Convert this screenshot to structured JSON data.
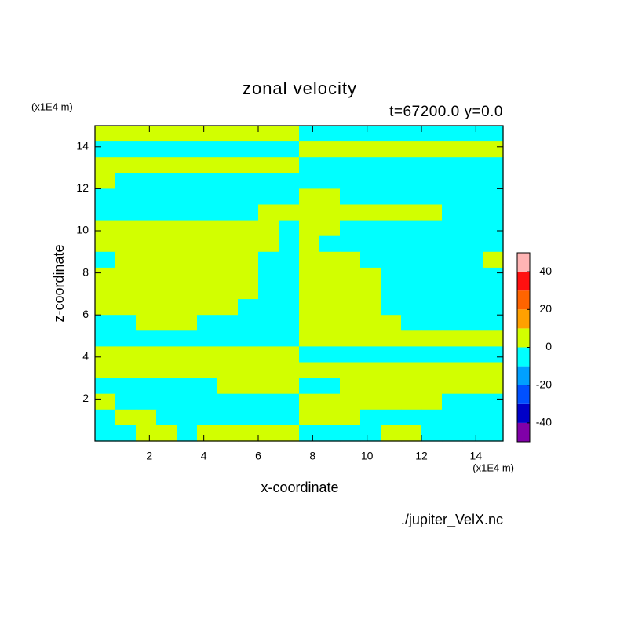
{
  "chart_data": {
    "type": "contour",
    "title": "zonal velocity",
    "subtitle": "t=67200.0 y=0.0",
    "y_unit": "(x1E4 m)",
    "x_unit": "(x1E4 m)",
    "xlabel": "x-coordinate",
    "ylabel": "z-coordinate",
    "source": "./jupiter_VelX.nc",
    "xlim": [
      0,
      15
    ],
    "ylim": [
      0,
      15
    ],
    "xticks": [
      2,
      4,
      6,
      8,
      10,
      12,
      14
    ],
    "yticks": [
      2,
      4,
      6,
      8,
      10,
      12,
      14
    ],
    "values": [
      [
        5,
        5,
        5,
        5,
        5,
        5,
        5,
        5,
        5,
        5,
        -5,
        -5,
        -5,
        -5,
        -5,
        -5,
        -5,
        -5,
        -5,
        -5
      ],
      [
        -5,
        -5,
        -5,
        -5,
        -5,
        -5,
        -5,
        -5,
        -5,
        -5,
        5,
        5,
        5,
        5,
        5,
        5,
        5,
        5,
        5,
        5
      ],
      [
        5,
        5,
        5,
        5,
        5,
        5,
        5,
        5,
        5,
        5,
        -5,
        -5,
        -5,
        -5,
        -5,
        -5,
        -5,
        -5,
        -5,
        -5
      ],
      [
        5,
        -5,
        -5,
        -5,
        -5,
        -5,
        -5,
        -5,
        -5,
        -5,
        -5,
        -5,
        -5,
        -5,
        -5,
        -5,
        -5,
        -5,
        -5,
        -5
      ],
      [
        -5,
        -5,
        -5,
        -5,
        -5,
        -5,
        -5,
        -5,
        -5,
        -5,
        5,
        5,
        -5,
        -5,
        -5,
        -5,
        -5,
        -5,
        -5,
        -5
      ],
      [
        -5,
        -5,
        -5,
        -5,
        -5,
        -5,
        -5,
        -5,
        5,
        5,
        5,
        5,
        5,
        5,
        5,
        5,
        5,
        -5,
        -5,
        -5
      ],
      [
        5,
        5,
        5,
        5,
        5,
        5,
        5,
        5,
        5,
        -5,
        5,
        5,
        -5,
        -5,
        -5,
        -5,
        -5,
        -5,
        -5,
        -5
      ],
      [
        5,
        5,
        5,
        5,
        5,
        5,
        5,
        5,
        5,
        -5,
        5,
        -5,
        -5,
        -5,
        -5,
        -5,
        -5,
        -5,
        -5,
        -5
      ],
      [
        -5,
        5,
        5,
        5,
        5,
        5,
        5,
        5,
        -5,
        -5,
        5,
        5,
        5,
        -5,
        -5,
        -5,
        -5,
        -5,
        -5,
        5
      ],
      [
        5,
        5,
        5,
        5,
        5,
        5,
        5,
        5,
        -5,
        -5,
        5,
        5,
        5,
        5,
        -5,
        -5,
        -5,
        -5,
        -5,
        -5
      ],
      [
        5,
        5,
        5,
        5,
        5,
        5,
        5,
        5,
        -5,
        -5,
        5,
        5,
        5,
        5,
        -5,
        -5,
        -5,
        -5,
        -5,
        -5
      ],
      [
        5,
        5,
        5,
        5,
        5,
        5,
        5,
        -5,
        -5,
        -5,
        5,
        5,
        5,
        5,
        -5,
        -5,
        -5,
        -5,
        -5,
        -5
      ],
      [
        -5,
        -5,
        5,
        5,
        5,
        -5,
        -5,
        -5,
        -5,
        -5,
        5,
        5,
        5,
        5,
        5,
        -5,
        -5,
        -5,
        -5,
        -5
      ],
      [
        -5,
        -5,
        -5,
        -5,
        -5,
        -5,
        -5,
        -5,
        -5,
        -5,
        5,
        5,
        5,
        5,
        5,
        5,
        5,
        5,
        5,
        5
      ],
      [
        5,
        5,
        5,
        5,
        5,
        5,
        5,
        5,
        5,
        5,
        -5,
        -5,
        -5,
        -5,
        -5,
        -5,
        -5,
        -5,
        -5,
        -5
      ],
      [
        5,
        5,
        5,
        5,
        5,
        5,
        5,
        5,
        5,
        5,
        5,
        5,
        5,
        5,
        5,
        5,
        5,
        5,
        5,
        5
      ],
      [
        -5,
        -5,
        -5,
        -5,
        -5,
        -5,
        5,
        5,
        5,
        5,
        -5,
        -5,
        5,
        5,
        5,
        5,
        5,
        5,
        5,
        5
      ],
      [
        5,
        -5,
        -5,
        -5,
        -5,
        -5,
        -5,
        -5,
        -5,
        -5,
        5,
        5,
        5,
        5,
        5,
        5,
        5,
        -5,
        -5,
        -5
      ],
      [
        -5,
        5,
        5,
        -5,
        -5,
        -5,
        -5,
        -5,
        -5,
        -5,
        5,
        5,
        5,
        -5,
        -5,
        -5,
        -5,
        -5,
        -5,
        -5
      ],
      [
        -5,
        -5,
        5,
        5,
        -5,
        5,
        5,
        5,
        5,
        5,
        -5,
        -5,
        -5,
        -5,
        5,
        5,
        -5,
        -5,
        -5,
        -5
      ]
    ],
    "levels": [
      -50,
      -40,
      -30,
      -20,
      -10,
      0,
      10,
      20,
      30,
      40,
      50
    ],
    "colors": [
      "#8000a8",
      "#0000c8",
      "#0050ff",
      "#00a0ff",
      "#00ffff",
      "#d2ff00",
      "#ffa000",
      "#ff6400",
      "#ff1010",
      "#ffb4b4"
    ],
    "colorbar_ticks": [
      -40,
      -20,
      0,
      20,
      40
    ]
  }
}
